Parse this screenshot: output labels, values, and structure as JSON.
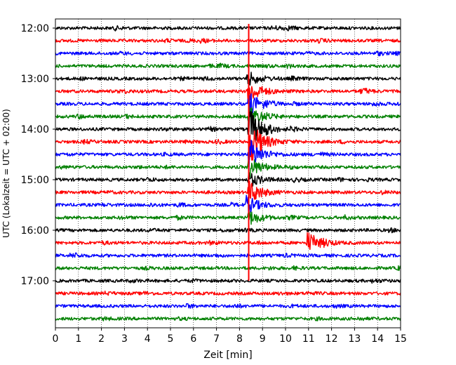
{
  "chart_data": {
    "type": "line",
    "title": "",
    "xlabel": "Zeit  [min]",
    "ylabel": "UTC (Lokalzeit = UTC + 02:00)",
    "xlim": [
      0,
      15
    ],
    "x_ticks": [
      0,
      1,
      2,
      3,
      4,
      5,
      6,
      7,
      8,
      9,
      10,
      11,
      12,
      13,
      14,
      15
    ],
    "x_tick_labels": [
      "0",
      "1",
      "2",
      "3",
      "4",
      "5",
      "6",
      "7",
      "8",
      "9",
      "10",
      "11",
      "12",
      "13",
      "14",
      "15"
    ],
    "y_ticks_minutes": [
      720,
      780,
      840,
      900,
      960,
      1020
    ],
    "y_tick_labels": [
      "12:00",
      "13:00",
      "14:00",
      "15:00",
      "16:00",
      "17:00"
    ],
    "trace_start_minutes": 720,
    "trace_interval_minutes": 15,
    "trace_count": 24,
    "trace_colors": [
      "#000000",
      "#ff0000",
      "#0000ff",
      "#008000"
    ],
    "grid": true,
    "marker_line": {
      "x": 8.4,
      "color": "#ff0000",
      "y_from_minutes": 715,
      "y_to_minutes": 1020
    },
    "events": [
      {
        "trace_index": 4,
        "x": 8.35,
        "amplitude": 0.4
      },
      {
        "trace_index": 5,
        "x": 8.38,
        "amplitude": 0.7
      },
      {
        "trace_index": 6,
        "x": 8.4,
        "amplitude": 0.6
      },
      {
        "trace_index": 7,
        "x": 8.4,
        "amplitude": 0.6
      },
      {
        "trace_index": 8,
        "x": 8.4,
        "amplitude": 1.2
      },
      {
        "trace_index": 9,
        "x": 8.45,
        "amplitude": 1.3
      },
      {
        "trace_index": 10,
        "x": 8.4,
        "amplitude": 0.9
      },
      {
        "trace_index": 11,
        "x": 8.4,
        "amplitude": 0.6
      },
      {
        "trace_index": 12,
        "x": 8.4,
        "amplitude": 0.4
      },
      {
        "trace_index": 13,
        "x": 8.4,
        "amplitude": 0.6
      },
      {
        "trace_index": 14,
        "x": 8.3,
        "amplitude": 0.5
      },
      {
        "trace_index": 15,
        "x": 8.4,
        "amplitude": 0.4
      },
      {
        "trace_index": 17,
        "x": 10.95,
        "amplitude": 0.6
      }
    ]
  }
}
